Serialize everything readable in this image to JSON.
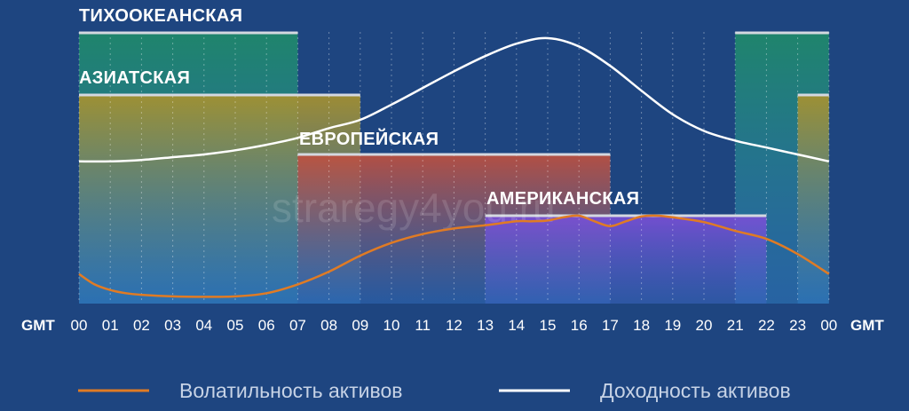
{
  "chart_data": {
    "type": "area",
    "x_ticks": [
      "00",
      "01",
      "02",
      "03",
      "04",
      "05",
      "06",
      "07",
      "08",
      "09",
      "10",
      "11",
      "12",
      "13",
      "14",
      "15",
      "16",
      "17",
      "18",
      "19",
      "20",
      "21",
      "22",
      "23",
      "00"
    ],
    "axis_label": "GMT",
    "sessions": [
      {
        "name": "ТИХООКЕАНСКАЯ",
        "ranges": [
          [
            0,
            7
          ],
          [
            21,
            24
          ]
        ],
        "color_top": "#1f8a6a",
        "color_bottom": "#2f7bbf"
      },
      {
        "name": "АЗИАТСКАЯ",
        "ranges": [
          [
            0,
            9
          ],
          [
            23,
            24
          ]
        ],
        "color_top": "#a8922e",
        "color_bottom": "#2f7bbf"
      },
      {
        "name": "ЕВРОПЕЙСКАЯ",
        "ranges": [
          [
            7,
            17
          ]
        ],
        "color_top": "#c0503e",
        "color_bottom": "#2f6ab8"
      },
      {
        "name": "АМЕРИКАНСКАЯ",
        "ranges": [
          [
            13,
            22
          ]
        ],
        "color_top": "#7a4fd6",
        "color_bottom": "#3a66c0"
      }
    ],
    "series": [
      {
        "name": "Волатильность активов",
        "color": "#e07b24",
        "x": [
          0,
          0.5,
          1,
          1.5,
          2,
          3,
          4,
          5,
          6,
          7,
          8,
          9,
          10,
          11,
          12,
          13,
          14,
          14.5,
          15,
          15.5,
          16,
          16.5,
          17,
          17.5,
          18,
          18.5,
          19,
          20,
          21,
          22,
          23,
          24
        ],
        "y": [
          0.37,
          0.24,
          0.17,
          0.13,
          0.11,
          0.09,
          0.085,
          0.09,
          0.13,
          0.24,
          0.4,
          0.6,
          0.76,
          0.87,
          0.94,
          0.98,
          1.03,
          1.03,
          1.04,
          1.08,
          1.1,
          1.03,
          0.97,
          1.03,
          1.09,
          1.1,
          1.08,
          1.02,
          0.91,
          0.81,
          0.62,
          0.37
        ]
      },
      {
        "name": "Доходность активов",
        "color": "#ffffff",
        "x": [
          0,
          1,
          2,
          3,
          4,
          5,
          6,
          7,
          8,
          9,
          10,
          11,
          12,
          13,
          14,
          15,
          16,
          17,
          18,
          19,
          20,
          21,
          22,
          23,
          24
        ],
        "y": [
          0.95,
          0.95,
          0.96,
          0.98,
          1.0,
          1.03,
          1.07,
          1.12,
          1.19,
          1.25,
          1.36,
          1.48,
          1.6,
          1.71,
          1.8,
          1.84,
          1.78,
          1.64,
          1.46,
          1.29,
          1.17,
          1.1,
          1.05,
          1.0,
          0.95
        ]
      }
    ],
    "grid": true
  },
  "watermark": "straregy4you.ru"
}
